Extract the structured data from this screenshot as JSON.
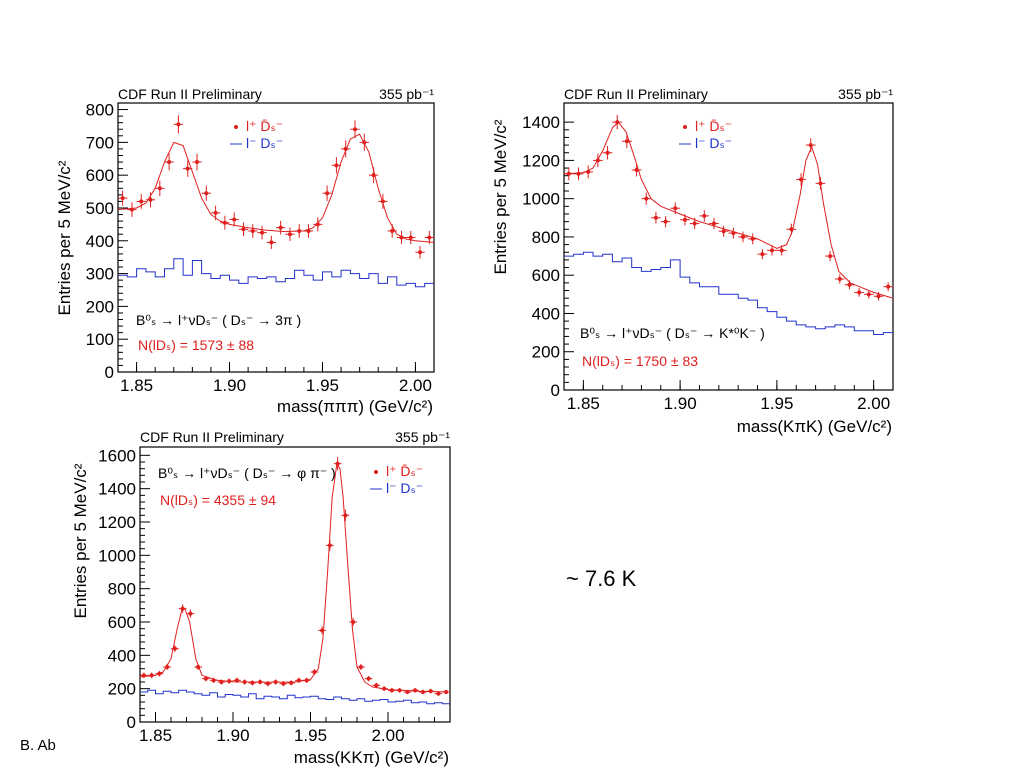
{
  "chart_data": [
    {
      "type": "scatter",
      "header_left": "CDF Run II Preliminary",
      "header_right": "355 pb⁻¹",
      "ylabel": "Entries per 5 MeV/c²",
      "xlabel": "mass(πππ) (GeV/c²)",
      "xlim": [
        1.84,
        2.01
      ],
      "ylim": [
        0,
        820
      ],
      "xticks": [
        "1.85",
        "1.90",
        "1.95",
        "2.00"
      ],
      "xtick_values": [
        1.85,
        1.9,
        1.95,
        2.0
      ],
      "yticks": [
        "0",
        "100",
        "200",
        "300",
        "400",
        "500",
        "600",
        "700",
        "800"
      ],
      "ytick_values": [
        0,
        100,
        200,
        300,
        400,
        500,
        600,
        700,
        800
      ],
      "legend": [
        "l⁺ D̄ₛ⁻",
        "l⁻ Dₛ⁻"
      ],
      "decay_label": "B⁰ₛ → l⁺νDₛ⁻ ( Dₛ⁻ → 3π )",
      "yield_label": "N(lDₛ) = 1573 ± 88",
      "series": [
        {
          "style": "points",
          "color": "#e0201f",
          "x": [
            1.8425,
            1.8475,
            1.8525,
            1.8575,
            1.8625,
            1.8675,
            1.8725,
            1.8775,
            1.8825,
            1.8875,
            1.8925,
            1.8975,
            1.9025,
            1.9075,
            1.9125,
            1.9175,
            1.9225,
            1.9275,
            1.9325,
            1.9375,
            1.9425,
            1.9475,
            1.9525,
            1.9575,
            1.9625,
            1.9675,
            1.9725,
            1.9775,
            1.9825,
            1.9875,
            1.9925,
            1.9975,
            2.0025,
            2.0075
          ],
          "y": [
            530,
            495,
            520,
            525,
            560,
            640,
            755,
            620,
            640,
            545,
            485,
            455,
            465,
            435,
            430,
            425,
            395,
            440,
            420,
            430,
            430,
            450,
            545,
            630,
            680,
            740,
            700,
            600,
            520,
            430,
            410,
            410,
            365,
            410
          ]
        },
        {
          "style": "curve",
          "color": "#e0201f",
          "x": [
            1.84,
            1.85,
            1.855,
            1.86,
            1.865,
            1.87,
            1.875,
            1.88,
            1.885,
            1.89,
            1.895,
            1.9,
            1.91,
            1.92,
            1.93,
            1.94,
            1.945,
            1.95,
            1.955,
            1.96,
            1.965,
            1.97,
            1.975,
            1.98,
            1.985,
            1.99,
            1.995,
            2.0,
            2.01
          ],
          "y": [
            495,
            500,
            515,
            560,
            640,
            700,
            690,
            610,
            530,
            480,
            460,
            450,
            440,
            432,
            428,
            430,
            440,
            470,
            540,
            640,
            710,
            725,
            670,
            560,
            470,
            420,
            405,
            400,
            395
          ]
        },
        {
          "style": "steps",
          "color": "#2233cc",
          "bin_width": 0.005,
          "x": [
            1.8425,
            1.8475,
            1.8525,
            1.8575,
            1.8625,
            1.8675,
            1.8725,
            1.8775,
            1.8825,
            1.8875,
            1.8925,
            1.8975,
            1.9025,
            1.9075,
            1.9125,
            1.9175,
            1.9225,
            1.9275,
            1.9325,
            1.9375,
            1.9425,
            1.9475,
            1.9525,
            1.9575,
            1.9625,
            1.9675,
            1.9725,
            1.9775,
            1.9825,
            1.9875,
            1.9925,
            1.9975,
            2.0025,
            2.0075
          ],
          "y": [
            295,
            290,
            315,
            305,
            290,
            315,
            345,
            295,
            340,
            300,
            285,
            295,
            280,
            270,
            290,
            285,
            290,
            275,
            285,
            310,
            295,
            280,
            305,
            290,
            310,
            300,
            285,
            300,
            270,
            290,
            265,
            270,
            260,
            270
          ]
        }
      ]
    },
    {
      "type": "scatter",
      "header_left": "CDF Run II Preliminary",
      "header_right": "355 pb⁻¹",
      "ylabel": "Entries per 5 MeV/c²",
      "xlabel": "mass(KπK) (GeV/c²)",
      "xlim": [
        1.84,
        2.01
      ],
      "ylim": [
        0,
        1500
      ],
      "xticks": [
        "1.85",
        "1.90",
        "1.95",
        "2.00"
      ],
      "xtick_values": [
        1.85,
        1.9,
        1.95,
        2.0
      ],
      "yticks": [
        "0",
        "200",
        "400",
        "600",
        "800",
        "1000",
        "1200",
        "1400"
      ],
      "ytick_values": [
        0,
        200,
        400,
        600,
        800,
        1000,
        1200,
        1400
      ],
      "legend": [
        "l⁺ D̄ₛ⁻",
        "l⁻ Dₛ⁻"
      ],
      "decay_label": "B⁰ₛ → l⁺νDₛ⁻ ( Dₛ⁻ → K*⁰K⁻ )",
      "yield_label": "N(lDₛ) = 1750 ± 83",
      "series": [
        {
          "style": "points",
          "color": "#e0201f",
          "x": [
            1.8425,
            1.8475,
            1.8525,
            1.8575,
            1.8625,
            1.8675,
            1.8725,
            1.8775,
            1.8825,
            1.8875,
            1.8925,
            1.8975,
            1.9025,
            1.9075,
            1.9125,
            1.9175,
            1.9225,
            1.9275,
            1.9325,
            1.9375,
            1.9425,
            1.9475,
            1.9525,
            1.9575,
            1.9625,
            1.9675,
            1.9725,
            1.9775,
            1.9825,
            1.9875,
            1.9925,
            1.9975,
            2.0025,
            2.0075
          ],
          "y": [
            1130,
            1130,
            1140,
            1200,
            1240,
            1400,
            1300,
            1150,
            1000,
            900,
            880,
            950,
            890,
            870,
            910,
            870,
            830,
            820,
            800,
            790,
            710,
            730,
            730,
            840,
            1100,
            1280,
            1080,
            700,
            580,
            550,
            510,
            500,
            490,
            540
          ]
        },
        {
          "style": "curve",
          "color": "#e0201f",
          "x": [
            1.84,
            1.85,
            1.855,
            1.86,
            1.865,
            1.868,
            1.872,
            1.876,
            1.88,
            1.885,
            1.89,
            1.9,
            1.91,
            1.92,
            1.93,
            1.94,
            1.95,
            1.955,
            1.958,
            1.962,
            1.965,
            1.968,
            1.971,
            1.974,
            1.978,
            1.982,
            1.988,
            1.995,
            2.0,
            2.01
          ],
          "y": [
            1130,
            1135,
            1160,
            1250,
            1370,
            1400,
            1350,
            1230,
            1100,
            1000,
            960,
            920,
            880,
            850,
            820,
            790,
            740,
            760,
            830,
            1020,
            1200,
            1270,
            1180,
            980,
            760,
            620,
            560,
            530,
            510,
            480
          ]
        },
        {
          "style": "steps",
          "color": "#2233cc",
          "bin_width": 0.005,
          "x": [
            1.8425,
            1.8475,
            1.8525,
            1.8575,
            1.8625,
            1.8675,
            1.8725,
            1.8775,
            1.8825,
            1.8875,
            1.8925,
            1.8975,
            1.9025,
            1.9075,
            1.9125,
            1.9175,
            1.9225,
            1.9275,
            1.9325,
            1.9375,
            1.9425,
            1.9475,
            1.9525,
            1.9575,
            1.9625,
            1.9675,
            1.9725,
            1.9775,
            1.9825,
            1.9875,
            1.9925,
            1.9975,
            2.0025,
            2.0075
          ],
          "y": [
            700,
            710,
            720,
            700,
            710,
            670,
            690,
            640,
            620,
            630,
            640,
            680,
            590,
            560,
            540,
            540,
            500,
            500,
            480,
            470,
            430,
            410,
            380,
            360,
            340,
            330,
            320,
            330,
            340,
            330,
            310,
            310,
            290,
            300
          ]
        }
      ]
    },
    {
      "type": "scatter",
      "header_left": "CDF Run II Preliminary",
      "header_right": "355 pb⁻¹",
      "ylabel": "Entries per 5 MeV/c²",
      "xlabel": "mass(KKπ) (GeV/c²)",
      "xlim": [
        1.84,
        2.04
      ],
      "ylim": [
        0,
        1650
      ],
      "xticks": [
        "1.85",
        "1.90",
        "1.95",
        "2.00"
      ],
      "xtick_values": [
        1.85,
        1.9,
        1.95,
        2.0
      ],
      "yticks": [
        "0",
        "200",
        "400",
        "600",
        "800",
        "1000",
        "1200",
        "1400",
        "1600"
      ],
      "ytick_values": [
        0,
        200,
        400,
        600,
        800,
        1000,
        1200,
        1400,
        1600
      ],
      "legend": [
        "l⁺ D̄ₛ⁻",
        "l⁻ Dₛ⁻"
      ],
      "decay_label": "B⁰ₛ → l⁺νDₛ⁻ ( Dₛ⁻ → φ π⁻ )",
      "yield_label": "N(lDₛ) = 4355 ± 94",
      "series": [
        {
          "style": "points",
          "color": "#e0201f",
          "x": [
            1.8425,
            1.8475,
            1.8525,
            1.8575,
            1.8625,
            1.8675,
            1.8725,
            1.8775,
            1.8825,
            1.8875,
            1.8925,
            1.8975,
            1.9025,
            1.9075,
            1.9125,
            1.9175,
            1.9225,
            1.9275,
            1.9325,
            1.9375,
            1.9425,
            1.9475,
            1.9525,
            1.9575,
            1.9625,
            1.9675,
            1.9725,
            1.9775,
            1.9825,
            1.9875,
            1.9925,
            1.9975,
            2.0025,
            2.0075,
            2.0125,
            2.0175,
            2.0225,
            2.0275,
            2.0325,
            2.0375
          ],
          "y": [
            280,
            280,
            290,
            330,
            440,
            680,
            650,
            330,
            260,
            250,
            240,
            245,
            250,
            240,
            235,
            240,
            230,
            240,
            230,
            235,
            250,
            250,
            300,
            550,
            1060,
            1550,
            1240,
            600,
            330,
            260,
            220,
            200,
            190,
            190,
            180,
            190,
            180,
            185,
            170,
            180
          ]
        },
        {
          "style": "curve",
          "color": "#e0201f",
          "x": [
            1.84,
            1.85,
            1.855,
            1.86,
            1.864,
            1.867,
            1.869,
            1.872,
            1.876,
            1.88,
            1.89,
            1.9,
            1.92,
            1.94,
            1.95,
            1.955,
            1.958,
            1.961,
            1.964,
            1.967,
            1.969,
            1.971,
            1.974,
            1.977,
            1.98,
            1.985,
            1.99,
            2.0,
            2.02,
            2.04
          ],
          "y": [
            270,
            280,
            300,
            380,
            560,
            670,
            680,
            600,
            380,
            280,
            250,
            242,
            238,
            240,
            255,
            320,
            500,
            900,
            1350,
            1550,
            1520,
            1350,
            950,
            560,
            330,
            240,
            210,
            195,
            185,
            180
          ]
        },
        {
          "style": "steps",
          "color": "#2233cc",
          "bin_width": 0.005,
          "x": [
            1.8425,
            1.8475,
            1.8525,
            1.8575,
            1.8625,
            1.8675,
            1.8725,
            1.8775,
            1.8825,
            1.8875,
            1.8925,
            1.8975,
            1.9025,
            1.9075,
            1.9125,
            1.9175,
            1.9225,
            1.9275,
            1.9325,
            1.9375,
            1.9425,
            1.9475,
            1.9525,
            1.9575,
            1.9625,
            1.9675,
            1.9725,
            1.9775,
            1.9825,
            1.9875,
            1.9925,
            1.9975,
            2.0025,
            2.0075,
            2.0125,
            2.0175,
            2.0225,
            2.0275,
            2.0325,
            2.0375
          ],
          "y": [
            180,
            190,
            170,
            185,
            175,
            190,
            180,
            170,
            160,
            175,
            150,
            165,
            160,
            150,
            170,
            140,
            155,
            150,
            140,
            160,
            145,
            150,
            155,
            140,
            135,
            150,
            140,
            130,
            140,
            125,
            130,
            135,
            120,
            125,
            130,
            115,
            120,
            110,
            115,
            110
          ]
        }
      ]
    }
  ],
  "summary": "~ 7.6 K",
  "footer": "B. Ab"
}
